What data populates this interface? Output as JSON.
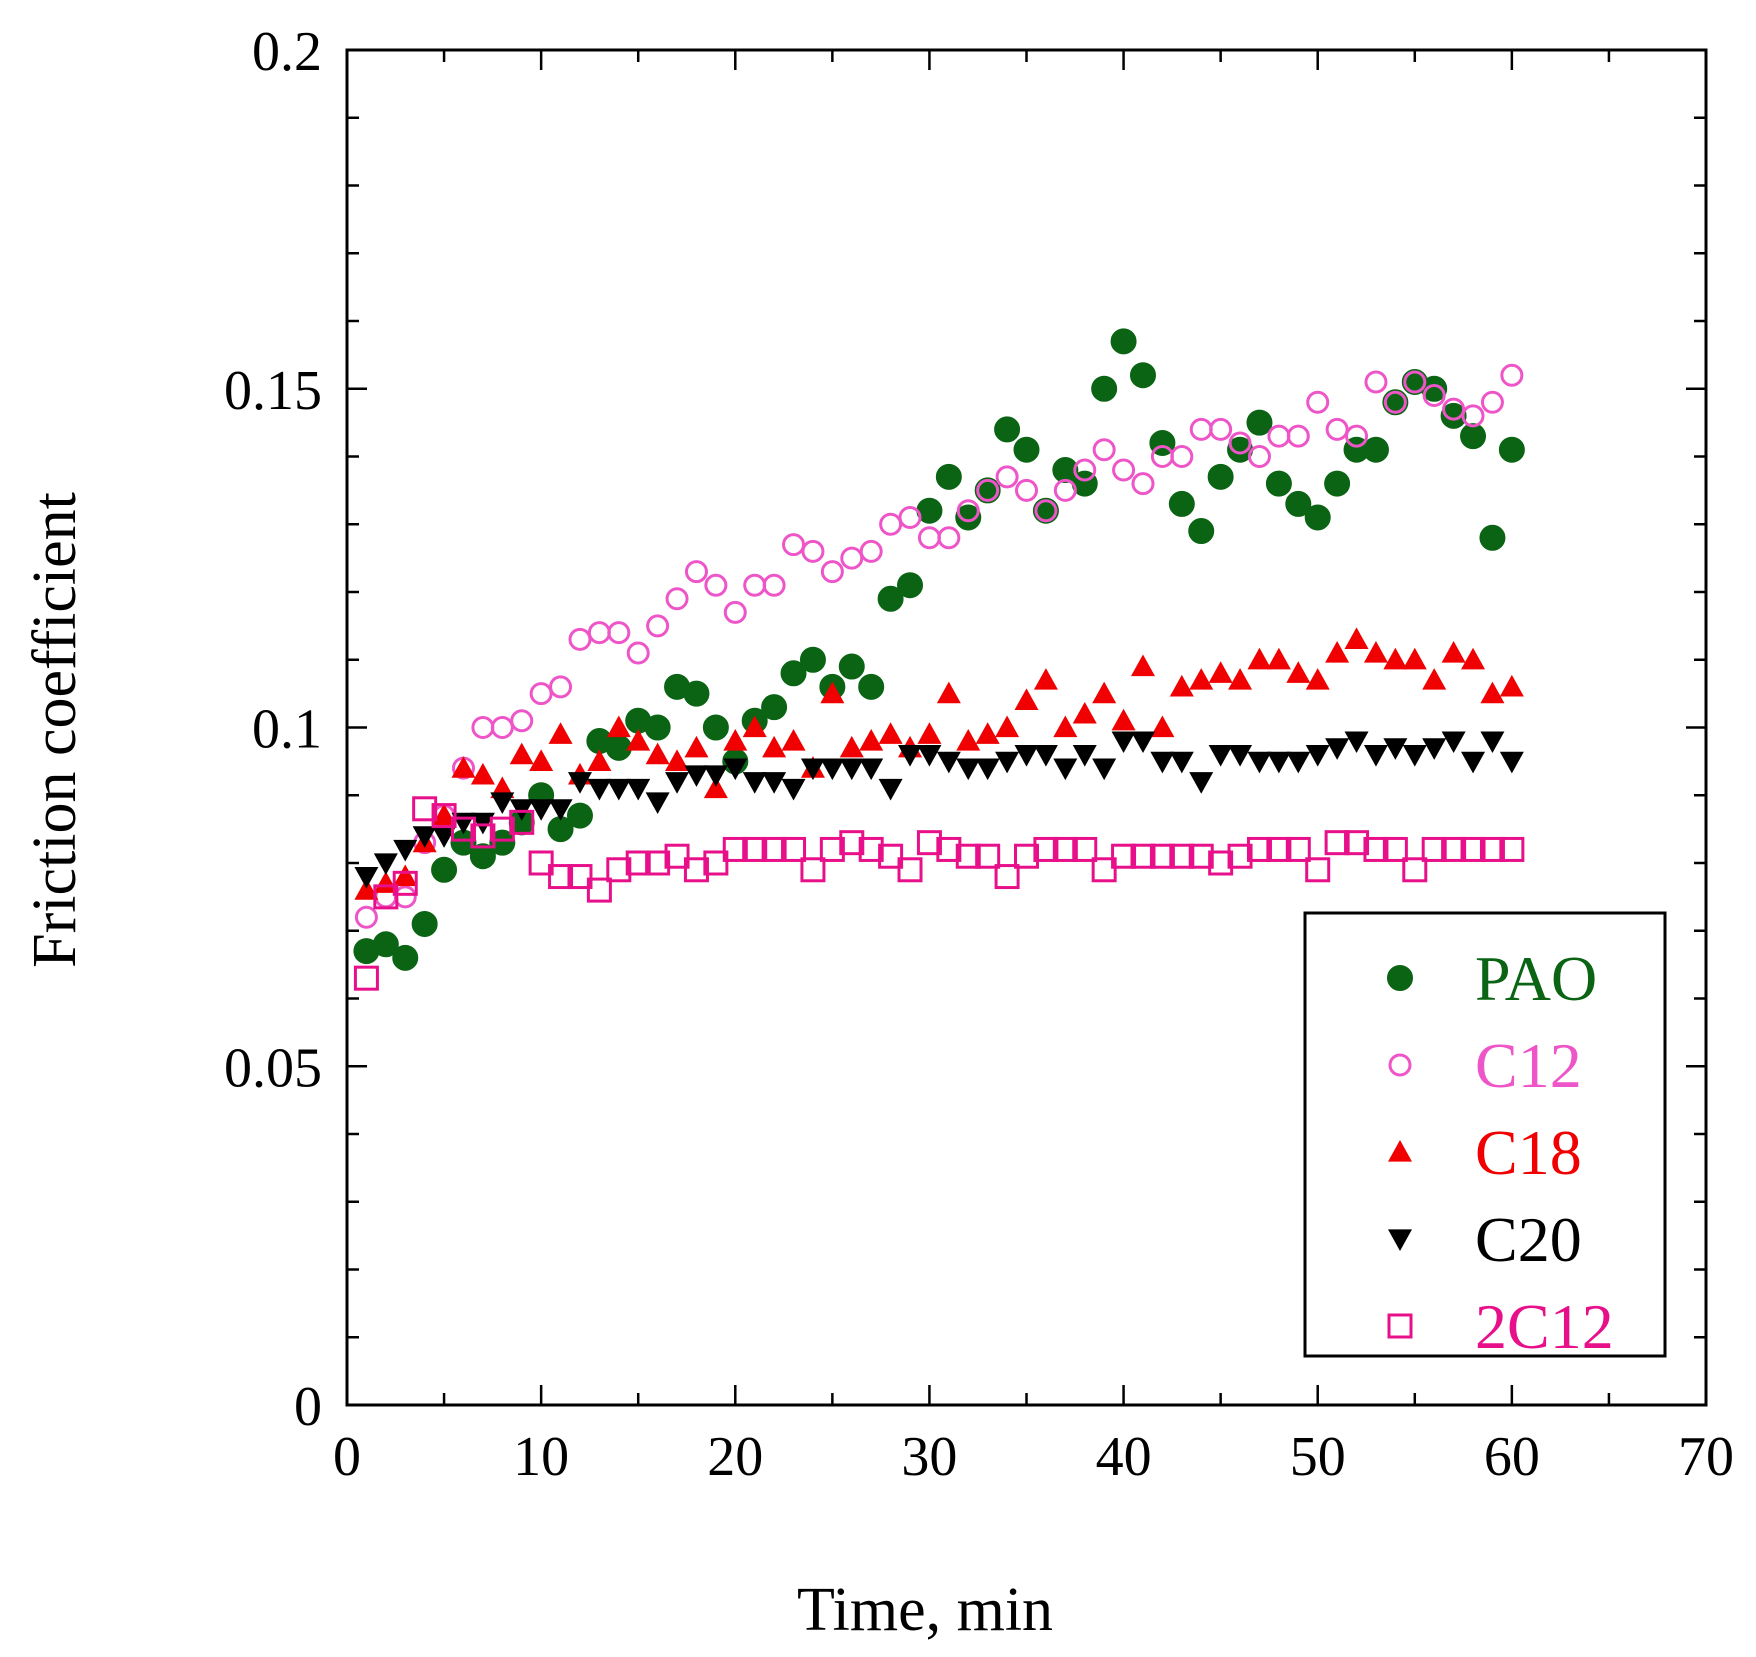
{
  "chart_data": {
    "type": "scatter",
    "title": "",
    "xlabel": "Time, min",
    "ylabel": "Friction coefficient",
    "xlim": [
      0,
      70
    ],
    "ylim": [
      0,
      0.2
    ],
    "xticks": [
      0,
      10,
      20,
      30,
      40,
      50,
      60,
      70
    ],
    "xtick_labels": [
      "0",
      "10",
      "20",
      "30",
      "40",
      "50",
      "60",
      "70"
    ],
    "yticks": [
      0,
      0.05,
      0.1,
      0.15,
      0.2
    ],
    "ytick_labels": [
      "0",
      "0.05",
      "0.1",
      "0.15",
      "0.2"
    ],
    "grid": false,
    "legend_position": "lower-right",
    "x": [
      1,
      2,
      3,
      4,
      5,
      6,
      7,
      8,
      9,
      10,
      11,
      12,
      13,
      14,
      15,
      16,
      17,
      18,
      19,
      20,
      21,
      22,
      23,
      24,
      25,
      26,
      27,
      28,
      29,
      30,
      31,
      32,
      33,
      34,
      35,
      36,
      37,
      38,
      39,
      40,
      41,
      42,
      43,
      44,
      45,
      46,
      47,
      48,
      49,
      50,
      51,
      52,
      53,
      54,
      55,
      56,
      57,
      58,
      59,
      60
    ],
    "series": [
      {
        "name": "PAO",
        "marker": "filled-circle",
        "color": "#0a6414",
        "values": [
          0.067,
          0.068,
          0.066,
          0.071,
          0.079,
          0.083,
          0.081,
          0.083,
          0.086,
          0.09,
          0.085,
          0.087,
          0.098,
          0.097,
          0.101,
          0.1,
          0.106,
          0.105,
          0.1,
          0.095,
          0.101,
          0.103,
          0.108,
          0.11,
          0.106,
          0.109,
          0.106,
          0.119,
          0.121,
          0.132,
          0.137,
          0.131,
          0.135,
          0.144,
          0.141,
          0.132,
          0.138,
          0.136,
          0.15,
          0.157,
          0.152,
          0.142,
          0.133,
          0.129,
          0.137,
          0.141,
          0.145,
          0.136,
          0.133,
          0.131,
          0.136,
          0.141,
          0.141,
          0.148,
          0.151,
          0.15,
          0.146,
          0.143,
          0.128,
          0.141
        ]
      },
      {
        "name": "C12",
        "marker": "open-circle",
        "color": "#ee55c8",
        "values": [
          0.072,
          0.075,
          0.075,
          0.083,
          0.087,
          0.094,
          0.1,
          0.1,
          0.101,
          0.105,
          0.106,
          0.113,
          0.114,
          0.114,
          0.111,
          0.115,
          0.119,
          0.123,
          0.121,
          0.117,
          0.121,
          0.121,
          0.127,
          0.126,
          0.123,
          0.125,
          0.126,
          0.13,
          0.131,
          0.128,
          0.128,
          0.132,
          0.135,
          0.137,
          0.135,
          0.132,
          0.135,
          0.138,
          0.141,
          0.138,
          0.136,
          0.14,
          0.14,
          0.144,
          0.144,
          0.142,
          0.14,
          0.143,
          0.143,
          0.148,
          0.144,
          0.143,
          0.151,
          0.148,
          0.151,
          0.149,
          0.147,
          0.146,
          0.148,
          0.152
        ]
      },
      {
        "name": "C18",
        "marker": "filled-triangle-up",
        "color": "#f00000",
        "values": [
          0.076,
          0.077,
          0.078,
          0.083,
          0.087,
          0.094,
          0.093,
          0.091,
          0.096,
          0.095,
          0.099,
          0.093,
          0.095,
          0.1,
          0.098,
          0.096,
          0.095,
          0.097,
          0.091,
          0.098,
          0.1,
          0.097,
          0.098,
          0.094,
          0.105,
          0.097,
          0.098,
          0.099,
          0.097,
          0.099,
          0.105,
          0.098,
          0.099,
          0.1,
          0.104,
          0.107,
          0.1,
          0.102,
          0.105,
          0.101,
          0.109,
          0.1,
          0.106,
          0.107,
          0.108,
          0.107,
          0.11,
          0.11,
          0.108,
          0.107,
          0.111,
          0.113,
          0.111,
          0.11,
          0.11,
          0.107,
          0.111,
          0.11,
          0.105,
          0.106
        ]
      },
      {
        "name": "C20",
        "marker": "filled-triangle-down",
        "color": "#000000",
        "values": [
          0.078,
          0.08,
          0.082,
          0.084,
          0.084,
          0.086,
          0.086,
          0.089,
          0.088,
          0.088,
          0.088,
          0.092,
          0.091,
          0.091,
          0.091,
          0.089,
          0.092,
          0.093,
          0.093,
          0.094,
          0.092,
          0.092,
          0.091,
          0.094,
          0.094,
          0.094,
          0.094,
          0.091,
          0.096,
          0.096,
          0.095,
          0.094,
          0.094,
          0.095,
          0.096,
          0.096,
          0.094,
          0.096,
          0.094,
          0.098,
          0.098,
          0.095,
          0.095,
          0.092,
          0.096,
          0.096,
          0.095,
          0.095,
          0.095,
          0.096,
          0.097,
          0.098,
          0.096,
          0.097,
          0.096,
          0.097,
          0.098,
          0.095,
          0.098,
          0.095
        ]
      },
      {
        "name": "2C12",
        "marker": "open-square",
        "color": "#e8108a",
        "values": [
          0.063,
          0.075,
          0.077,
          0.088,
          0.087,
          0.085,
          0.084,
          0.085,
          0.086,
          0.08,
          0.078,
          0.078,
          0.076,
          0.079,
          0.08,
          0.08,
          0.081,
          0.079,
          0.08,
          0.082,
          0.082,
          0.082,
          0.082,
          0.079,
          0.082,
          0.083,
          0.082,
          0.081,
          0.079,
          0.083,
          0.082,
          0.081,
          0.081,
          0.078,
          0.081,
          0.082,
          0.082,
          0.082,
          0.079,
          0.081,
          0.081,
          0.081,
          0.081,
          0.081,
          0.08,
          0.081,
          0.082,
          0.082,
          0.082,
          0.079,
          0.083,
          0.083,
          0.082,
          0.082,
          0.079,
          0.082,
          0.082,
          0.082,
          0.082,
          0.082
        ]
      }
    ]
  }
}
